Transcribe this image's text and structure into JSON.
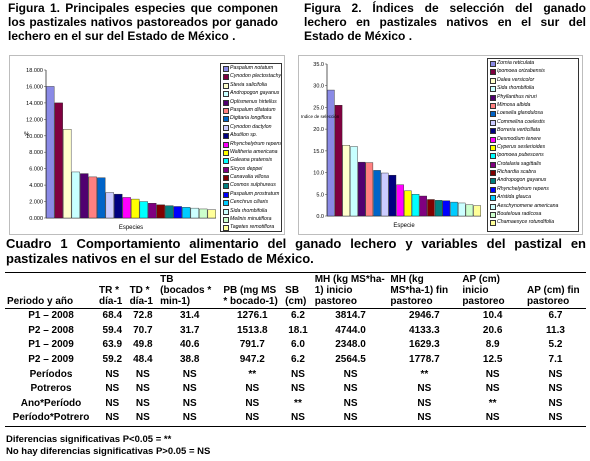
{
  "figure1": {
    "caption": "Figura 1. Principales especies que componen los pastizales nativos pastoreados por ganado lechero en el sur del Estado de México .",
    "chart_data": {
      "type": "bar",
      "ylabel": "%",
      "xlabel": "Especies",
      "ylim": [
        0,
        18
      ],
      "yticks": [
        "0.000",
        "2.000",
        "4.000",
        "6.000",
        "8.000",
        "10.000",
        "12.000",
        "14.000",
        "16.000",
        "18.000"
      ],
      "categories": [
        "Paspalum notatum",
        "Cynodon plectostachyus",
        "Stevia salicifolia",
        "Andropogon gayanus",
        "Oplismenus hirtellus",
        "Paspalum dilatatum",
        "Digitaria longiflora",
        "Cynodon dactylon",
        "Abutilon sp.",
        "Rhynchelytrum repens",
        "Waltheria americana",
        "Galeana pratensis",
        "Sicyos deppei",
        "Canavalia villosa",
        "Cosmos sulphureus",
        "Paspalum prostratum",
        "Cenchrus ciliaris",
        "Sida rhombifolia",
        "Melinis minutiflora",
        "Tagetes remotiflora"
      ],
      "values": [
        16.0,
        14.0,
        10.8,
        5.6,
        5.4,
        5.0,
        4.9,
        3.1,
        2.9,
        2.5,
        2.3,
        2.0,
        1.8,
        1.6,
        1.5,
        1.4,
        1.3,
        1.2,
        1.1,
        1.0
      ],
      "colors": [
        "#8A8AE6",
        "#800040",
        "#FFFFCC",
        "#C8FFFF",
        "#500070",
        "#FF8080",
        "#0064C8",
        "#CCCCFF",
        "#000080",
        "#FF00FF",
        "#FFFF00",
        "#00FFFF",
        "#800080",
        "#800000",
        "#008080",
        "#0000FF",
        "#00CCFF",
        "#CCFFFF",
        "#CCFFCC",
        "#FFFF99"
      ]
    }
  },
  "figure2": {
    "caption": "Figura 2. Índices de selección del ganado lechero en pastizales nativos en el sur del Estado de México .",
    "chart_data": {
      "type": "bar",
      "ylabel": "Indice de selección",
      "xlabel": "Especie",
      "ylim": [
        0,
        35
      ],
      "yticks": [
        "0.0",
        "5.0",
        "10.0",
        "15.0",
        "20.0",
        "25.0",
        "30.0",
        "35.0"
      ],
      "categories": [
        "Zornia reticulata",
        "Ipomoea orizabensis",
        "Dalea versicolor",
        "Sida rhombifolia",
        "Phyllanthus niruri",
        "Mimosa albida",
        "Loeselia glandulosa",
        "Commelina coelestis",
        "Borreria verticillata",
        "Desmodium tenere",
        "Cyperus seslerioides",
        "Ipomoea pubescens",
        "Crotalaria sagittalis",
        "Richardia scabra",
        "Andropogon gayanus",
        "Rhynchelytrum repens",
        "Aristida glauca",
        "Aeschynomene americana",
        "Bouteloua radicosa",
        "Chamaesyce rotundifolia"
      ],
      "values": [
        29.0,
        25.5,
        16.3,
        16.0,
        12.4,
        12.3,
        10.5,
        9.9,
        9.4,
        7.2,
        5.8,
        5.0,
        4.6,
        3.8,
        3.6,
        3.5,
        3.2,
        3.0,
        2.6,
        2.4
      ],
      "colors": [
        "#8A8AE6",
        "#800040",
        "#FFFFCC",
        "#C8FFFF",
        "#500070",
        "#FF8080",
        "#0064C8",
        "#CCCCFF",
        "#000080",
        "#FF00FF",
        "#FFFF00",
        "#00FFFF",
        "#800080",
        "#800000",
        "#008080",
        "#0000FF",
        "#00CCFF",
        "#CCFFFF",
        "#CCFFCC",
        "#FFFF99"
      ]
    }
  },
  "cuadro": {
    "title": "Cuadro 1 Comportamiento alimentario del ganado lechero  y variables del pastizal en pastizales nativos en el sur del Estado de México.",
    "headers": [
      "Periodo y año",
      "TR * día-1",
      "TD * día-1",
      "TB (bocados * min-1)",
      "PB (mg MS * bocado-1)",
      "SB (cm)",
      "MH (kg MS*ha-1) inicio pastoreo",
      "MH (kg MS*ha-1) fin pastoreo",
      "AP (cm) inicio pastoreo",
      "AP (cm) fin pastoreo"
    ],
    "rows": [
      [
        "P1 – 2008",
        "68.4",
        "72.8",
        "31.4",
        "1276.1",
        "6.2",
        "3814.7",
        "2946.7",
        "10.4",
        "6.7"
      ],
      [
        "P2 – 2008",
        "59.4",
        "70.7",
        "31.7",
        "1513.8",
        "18.1",
        "4744.0",
        "4133.3",
        "20.6",
        "11.3"
      ],
      [
        "P1 – 2009",
        "63.9",
        "49.8",
        "40.6",
        "791.7",
        "6.0",
        "2348.0",
        "1629.3",
        "8.9",
        "5.2"
      ],
      [
        "P2 – 2009",
        "59.2",
        "48.4",
        "38.8",
        "947.2",
        "6.2",
        "2564.5",
        "1778.7",
        "12.5",
        "7.1"
      ],
      [
        "Períodos",
        "NS",
        "NS",
        "NS",
        "**",
        "NS",
        "NS",
        "**",
        "NS",
        "NS"
      ],
      [
        "Potreros",
        "NS",
        "NS",
        "NS",
        "NS",
        "NS",
        "NS",
        "NS",
        "NS",
        "NS"
      ],
      [
        "Ano*Período",
        "NS",
        "NS",
        "NS",
        "NS",
        "**",
        "NS",
        "NS",
        "**",
        "NS"
      ],
      [
        "Período*Potrero",
        "NS",
        "NS",
        "NS",
        "NS",
        "NS",
        "NS",
        "NS",
        "NS",
        "NS"
      ]
    ],
    "footnote1": "Diferencias significativas P<0.05 = **",
    "footnote2": "No hay diferencias significativas P>0.05 = NS"
  }
}
